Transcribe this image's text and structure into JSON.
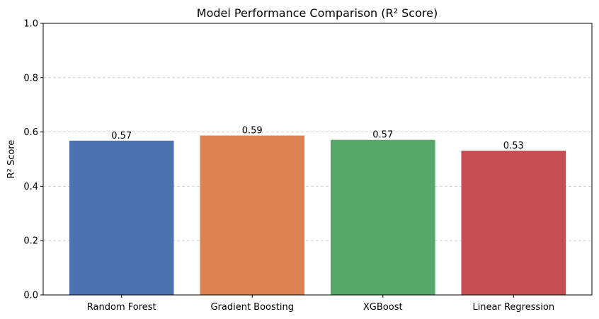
{
  "chart_data": {
    "type": "bar",
    "title": "Model Performance Comparison (R² Score)",
    "xlabel": "",
    "ylabel": "R² Score",
    "categories": [
      "Random Forest",
      "Gradient Boosting",
      "XGBoost",
      "Linear Regression"
    ],
    "values": [
      0.568,
      0.587,
      0.571,
      0.531
    ],
    "data_labels": [
      "0.57",
      "0.59",
      "0.57",
      "0.53"
    ],
    "colors": [
      "#4c72b0",
      "#dd8452",
      "#55a868",
      "#c44e52"
    ],
    "ylim": [
      0,
      1.0
    ],
    "yticks": [
      0.0,
      0.2,
      0.4,
      0.6,
      0.8,
      1.0
    ],
    "ytick_labels": [
      "0.0",
      "0.2",
      "0.4",
      "0.6",
      "0.8",
      "1.0"
    ],
    "grid": "y-dashed",
    "legend": "none"
  }
}
